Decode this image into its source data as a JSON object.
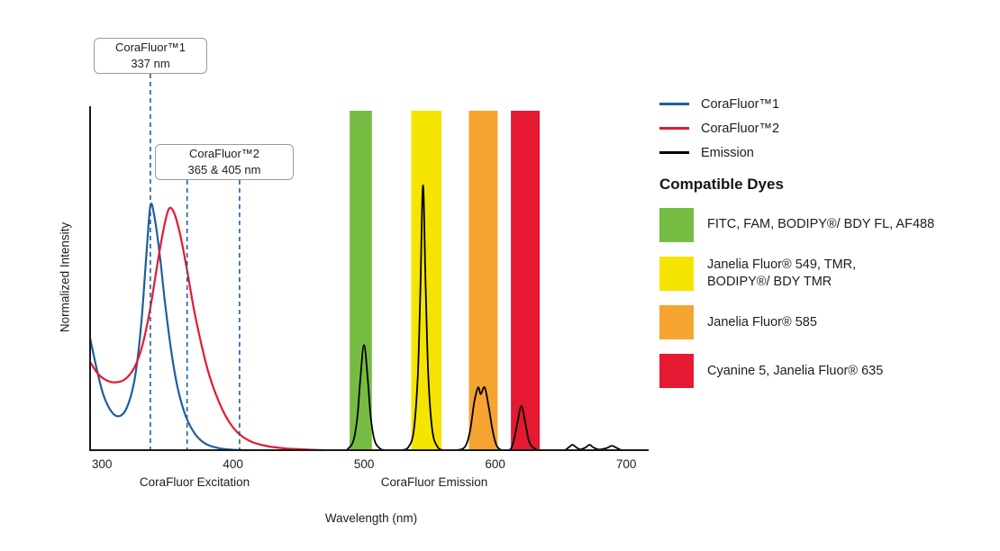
{
  "figure": {
    "ylabel": "Normalized Intensity",
    "xlabel": "Wavelength (nm)",
    "excitation_label": "CoraFluor Excitation",
    "emission_label": "CoraFluor Emission"
  },
  "callouts": [
    {
      "line1": "CoraFluor™1",
      "line2": "337 nm",
      "guides_nm": [
        337
      ]
    },
    {
      "line1": "CoraFluor™2",
      "line2": "365 & 405 nm",
      "guides_nm": [
        365,
        405
      ]
    }
  ],
  "legend": {
    "series": [
      {
        "key": "corafluor1",
        "label": "CoraFluor™1",
        "color": "#1e5f9c"
      },
      {
        "key": "corafluor2",
        "label": "CoraFluor™2",
        "color": "#e51931"
      },
      {
        "key": "emission",
        "label": "Emission",
        "color": "#000000"
      }
    ],
    "dyes_heading": "Compatible Dyes",
    "dyes": [
      {
        "key": "green",
        "color": "#76bc43",
        "lines": [
          "FITC, FAM, BODIPY®/ BDY FL, AF488"
        ]
      },
      {
        "key": "yellow",
        "color": "#f5e400",
        "lines": [
          "Janelia Fluor® 549, TMR,",
          "BODIPY®/ BDY TMR"
        ]
      },
      {
        "key": "orange",
        "color": "#f5a431",
        "lines": [
          "Janelia Fluor® 585"
        ]
      },
      {
        "key": "red",
        "color": "#e51931",
        "lines": [
          "Cyanine 5, Janelia Fluor® 635"
        ]
      }
    ]
  },
  "chart_data": {
    "type": "line",
    "xlabel": "Wavelength (nm)",
    "ylabel": "Normalized Intensity",
    "xlim": [
      291,
      715
    ],
    "ylim": [
      0,
      1.0
    ],
    "xticks": [
      300,
      400,
      500,
      600,
      700
    ],
    "guide_color": "#1e5f9c",
    "guide_lines_nm": [
      337,
      365,
      405
    ],
    "bands": [
      {
        "from": 489,
        "to": 506,
        "color": "#76bc43",
        "dyes": "FITC, FAM, BODIPY®/ BDY FL, AF488"
      },
      {
        "from": 536,
        "to": 559,
        "color": "#f5e400",
        "dyes": "Janelia Fluor® 549, TMR, BODIPY®/ BDY TMR"
      },
      {
        "from": 580,
        "to": 602,
        "color": "#f5a431",
        "dyes": "Janelia Fluor® 585"
      },
      {
        "from": 612,
        "to": 634,
        "color": "#e51931",
        "dyes": "Cyanine 5, Janelia Fluor® 635"
      }
    ],
    "series": [
      {
        "key": "corafluor1-excitation",
        "name": "CoraFluor™1",
        "color": "#1e5f9c",
        "points": [
          [
            291,
            0.33
          ],
          [
            296,
            0.24
          ],
          [
            301,
            0.165
          ],
          [
            307,
            0.115
          ],
          [
            313,
            0.1
          ],
          [
            319,
            0.125
          ],
          [
            325,
            0.21
          ],
          [
            330,
            0.37
          ],
          [
            334,
            0.58
          ],
          [
            337,
            0.72
          ],
          [
            340,
            0.69
          ],
          [
            344,
            0.58
          ],
          [
            348,
            0.44
          ],
          [
            353,
            0.29
          ],
          [
            358,
            0.18
          ],
          [
            364,
            0.1
          ],
          [
            371,
            0.048
          ],
          [
            379,
            0.019
          ],
          [
            389,
            0.006
          ],
          [
            400,
            0.001
          ],
          [
            412,
            0
          ]
        ]
      },
      {
        "key": "corafluor2-excitation",
        "name": "CoraFluor™2",
        "color": "#e51931",
        "points": [
          [
            291,
            0.26
          ],
          [
            297,
            0.225
          ],
          [
            304,
            0.205
          ],
          [
            311,
            0.2
          ],
          [
            318,
            0.21
          ],
          [
            325,
            0.245
          ],
          [
            331,
            0.31
          ],
          [
            337,
            0.42
          ],
          [
            342,
            0.54
          ],
          [
            347,
            0.65
          ],
          [
            351,
            0.71
          ],
          [
            355,
            0.7
          ],
          [
            360,
            0.63
          ],
          [
            365,
            0.53
          ],
          [
            370,
            0.42
          ],
          [
            376,
            0.31
          ],
          [
            382,
            0.22
          ],
          [
            389,
            0.145
          ],
          [
            396,
            0.09
          ],
          [
            404,
            0.05
          ],
          [
            414,
            0.025
          ],
          [
            426,
            0.012
          ],
          [
            440,
            0.005
          ],
          [
            455,
            0.002
          ],
          [
            468,
            0
          ]
        ]
      },
      {
        "key": "emission",
        "name": "Emission",
        "color": "#000000",
        "points": [
          [
            455,
            0
          ],
          [
            483,
            0
          ],
          [
            488,
            0.005
          ],
          [
            492,
            0.03
          ],
          [
            495,
            0.1
          ],
          [
            497,
            0.2
          ],
          [
            500,
            0.31
          ],
          [
            503,
            0.2
          ],
          [
            505,
            0.1
          ],
          [
            508,
            0.03
          ],
          [
            512,
            0.005
          ],
          [
            517,
            0
          ],
          [
            528,
            0
          ],
          [
            534,
            0.01
          ],
          [
            538,
            0.06
          ],
          [
            541,
            0.22
          ],
          [
            543,
            0.48
          ],
          [
            545,
            0.78
          ],
          [
            547,
            0.48
          ],
          [
            549,
            0.22
          ],
          [
            552,
            0.06
          ],
          [
            556,
            0.01
          ],
          [
            561,
            0
          ],
          [
            570,
            0
          ],
          [
            577,
            0.01
          ],
          [
            581,
            0.06
          ],
          [
            584,
            0.14
          ],
          [
            587,
            0.185
          ],
          [
            589,
            0.165
          ],
          [
            592,
            0.185
          ],
          [
            595,
            0.13
          ],
          [
            598,
            0.06
          ],
          [
            601,
            0.015
          ],
          [
            605,
            0
          ],
          [
            611,
            0
          ],
          [
            614,
            0.025
          ],
          [
            617,
            0.08
          ],
          [
            620,
            0.13
          ],
          [
            623,
            0.08
          ],
          [
            626,
            0.025
          ],
          [
            630,
            0.005
          ],
          [
            635,
            0
          ],
          [
            652,
            0
          ],
          [
            656,
            0.008
          ],
          [
            659,
            0.016
          ],
          [
            662,
            0.008
          ],
          [
            665,
            0.002
          ],
          [
            669,
            0.008
          ],
          [
            672,
            0.016
          ],
          [
            675,
            0.008
          ],
          [
            679,
            0.002
          ],
          [
            685,
            0.006
          ],
          [
            689,
            0.013
          ],
          [
            693,
            0.006
          ],
          [
            697,
            0
          ],
          [
            706,
            0
          ]
        ]
      }
    ]
  }
}
